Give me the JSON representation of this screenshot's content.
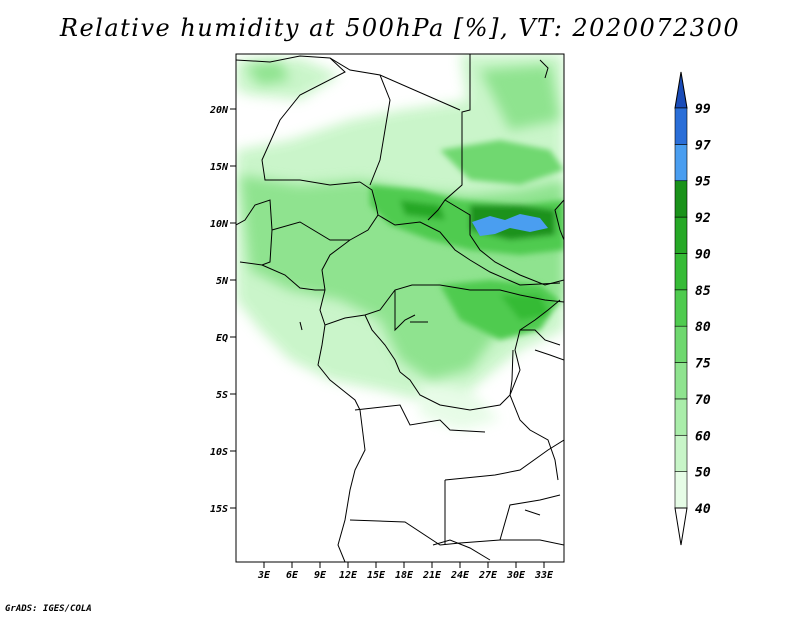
{
  "title": "Relative humidity at 500hPa [%], VT: 2020072300",
  "footer": "GrADS: IGES/COLA",
  "map": {
    "lat_labels": [
      "20N",
      "15N",
      "10N",
      "5N",
      "EQ",
      "5S",
      "10S",
      "15S"
    ],
    "lon_labels": [
      "3E",
      "6E",
      "9E",
      "12E",
      "15E",
      "18E",
      "21E",
      "24E",
      "27E",
      "30E",
      "33E"
    ]
  },
  "colorbar": {
    "levels": [
      "40",
      "50",
      "60",
      "70",
      "75",
      "80",
      "85",
      "90",
      "92",
      "95",
      "97",
      "99"
    ],
    "colors": [
      "#ffffff",
      "#e6fce6",
      "#c8f5c8",
      "#aaedaa",
      "#8fe38f",
      "#6fd86f",
      "#4fcb4f",
      "#36bb36",
      "#26a826",
      "#1a921a",
      "#4a9ef0",
      "#2a6ed8",
      "#1a4cb8"
    ]
  }
}
